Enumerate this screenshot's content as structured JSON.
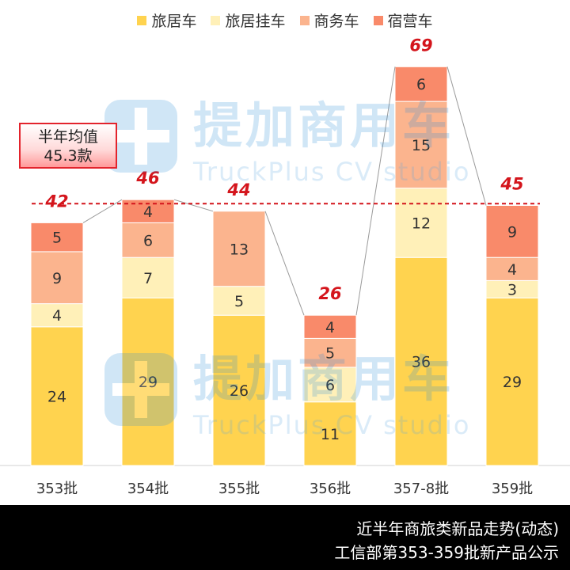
{
  "legend": [
    {
      "name": "旅居车",
      "color": "#ffd34f"
    },
    {
      "name": "旅居挂车",
      "color": "#fff0b8"
    },
    {
      "name": "商务车",
      "color": "#fbb48e"
    },
    {
      "name": "宿营车",
      "color": "#f98a6a"
    }
  ],
  "average_box": {
    "line1": "半年均值",
    "line2": "45.3款"
  },
  "watermark": {
    "cn": "提加商用车",
    "en": "TruckPlus CV studio"
  },
  "footer": {
    "line1": "近半年商旅类新品走势(动态)",
    "line2": "工信部第353-359批新产品公示"
  },
  "chart_data": {
    "type": "bar",
    "stacked": true,
    "categories": [
      "353批",
      "354批",
      "355批",
      "356批",
      "357-8批",
      "359批"
    ],
    "series": [
      {
        "name": "旅居车",
        "values": [
          24,
          29,
          26,
          11,
          36,
          29
        ],
        "color": "#ffd34f"
      },
      {
        "name": "旅居挂车",
        "values": [
          4,
          7,
          5,
          6,
          12,
          3
        ],
        "color": "#fff0b8"
      },
      {
        "name": "商务车",
        "values": [
          9,
          6,
          13,
          5,
          15,
          4
        ],
        "color": "#fbb48e"
      },
      {
        "name": "宿营车",
        "values": [
          5,
          4,
          null,
          4,
          6,
          9
        ],
        "color": "#f98a6a"
      }
    ],
    "totals": [
      42,
      46,
      44,
      26,
      69,
      45
    ],
    "average": 45.3,
    "ylim": [
      0,
      72
    ],
    "legend_position": "top",
    "grid": false
  }
}
